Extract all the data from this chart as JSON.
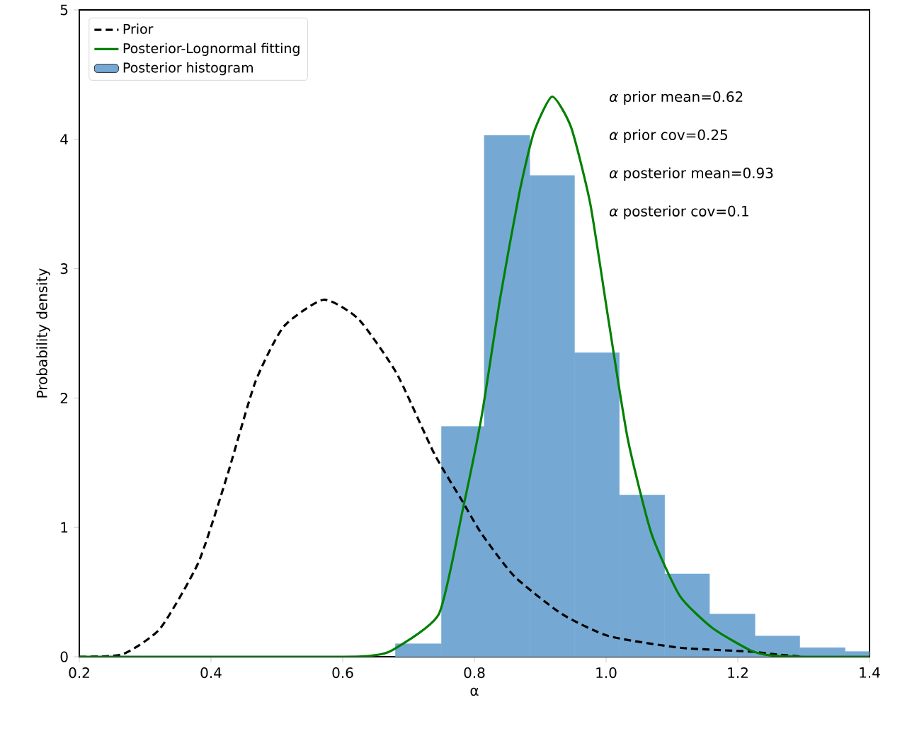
{
  "chart_data": {
    "type": "histogram",
    "xlabel": "α",
    "ylabel": "Probability density",
    "xlim": [
      0.2,
      1.4
    ],
    "ylim": [
      0,
      5
    ],
    "xticks": [
      {
        "value": 0.2,
        "label": "0.2"
      },
      {
        "value": 0.4,
        "label": "0.4"
      },
      {
        "value": 0.6,
        "label": "0.6"
      },
      {
        "value": 0.8,
        "label": "0.8"
      },
      {
        "value": 1.0,
        "label": "1.0"
      },
      {
        "value": 1.2,
        "label": "1.2"
      },
      {
        "value": 1.4,
        "label": "1.4"
      }
    ],
    "yticks": [
      0,
      1,
      2,
      3,
      4,
      5
    ],
    "grid": false,
    "legend": "top left",
    "series": [
      {
        "type": "line",
        "name": "Prior",
        "color": "#000000",
        "line_style": "dashed",
        "x": [
          0.2,
          0.266,
          0.323,
          0.381,
          0.424,
          0.467,
          0.51,
          0.571,
          0.624,
          0.682,
          0.739,
          0.782,
          0.811,
          0.861,
          0.933,
          1.004,
          1.112,
          1.219,
          1.255,
          1.3
        ],
        "values": [
          0,
          0.02,
          0.22,
          0.73,
          1.39,
          2.12,
          2.55,
          2.76,
          2.61,
          2.19,
          1.57,
          1.2,
          0.95,
          0.62,
          0.33,
          0.16,
          0.07,
          0.04,
          0.02,
          0
        ]
      },
      {
        "type": "line",
        "name": "Posterior-Lognormal fitting",
        "color": "#008000",
        "line_style": "solid",
        "x": [
          0.2,
          0.6,
          0.646,
          0.675,
          0.746,
          0.782,
          0.811,
          0.839,
          0.868,
          0.89,
          0.918,
          0.947,
          0.976,
          1.004,
          1.033,
          1.069,
          1.112,
          1.162,
          1.219,
          1.25,
          1.3,
          1.4
        ],
        "values": [
          0,
          0,
          0.01,
          0.05,
          0.33,
          1.13,
          1.86,
          2.77,
          3.58,
          4.05,
          4.33,
          4.09,
          3.5,
          2.59,
          1.68,
          0.95,
          0.47,
          0.22,
          0.05,
          0.01,
          0,
          0
        ]
      },
      {
        "name": "Posterior histogram",
        "color": "#75a9d4",
        "bins": [
          0.68,
          0.75,
          0.815,
          0.884,
          0.952,
          1.02,
          1.089,
          1.157,
          1.226,
          1.294,
          1.363,
          1.4
        ],
        "values": [
          0.1,
          1.78,
          4.03,
          3.72,
          2.35,
          1.25,
          0.64,
          0.33,
          0.16,
          0.07,
          0.04
        ]
      }
    ],
    "annotations": [
      "*α* prior mean=0.62",
      "*α* prior cov=0.25",
      "*α* posterior mean=0.93",
      "*α* posterior cov=0.1"
    ]
  }
}
